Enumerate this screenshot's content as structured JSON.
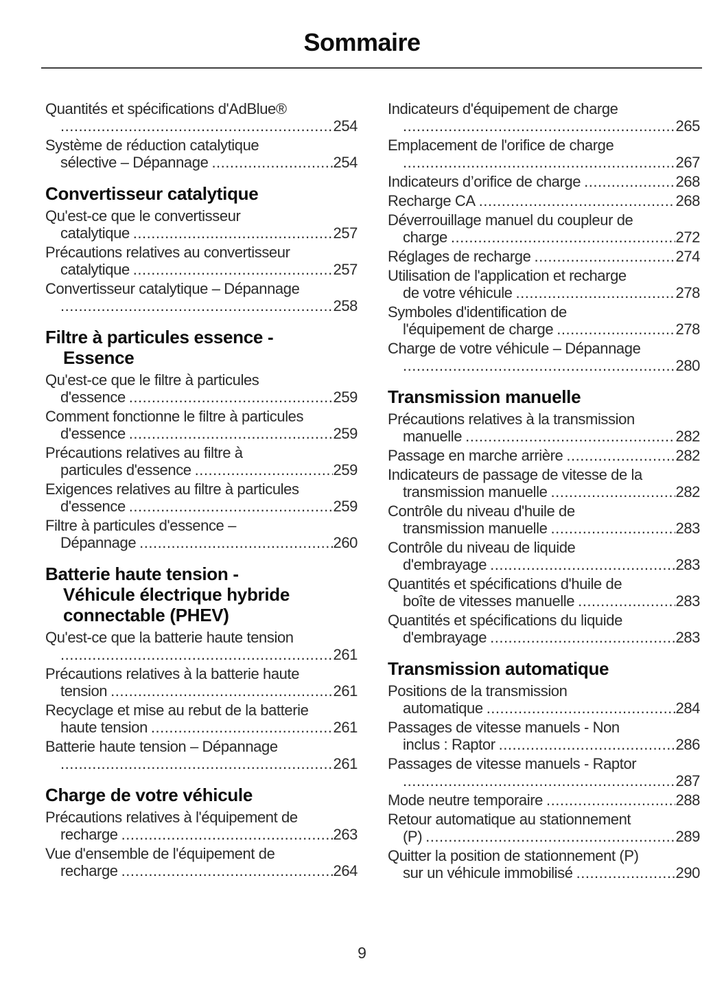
{
  "title": "Sommaire",
  "page_number": "9",
  "colors": {
    "body_text": "#2b2b2b",
    "heading_text": "#0d0d0d",
    "rule": "#404040",
    "background": "#ffffff"
  },
  "toc": {
    "left_column": [
      {
        "type": "entry",
        "lines": [
          "Quantités et spécifications d'AdBlue®",
          ""
        ],
        "page": "254"
      },
      {
        "type": "entry",
        "lines": [
          "Système de réduction catalytique",
          "sélective – Dépannage"
        ],
        "page": "254"
      },
      {
        "type": "heading",
        "lines": [
          "Convertisseur catalytique"
        ]
      },
      {
        "type": "entry",
        "lines": [
          "Qu'est-ce que le convertisseur",
          "catalytique"
        ],
        "page": "257"
      },
      {
        "type": "entry",
        "lines": [
          "Précautions relatives au convertisseur",
          "catalytique"
        ],
        "page": "257"
      },
      {
        "type": "entry",
        "lines": [
          "Convertisseur catalytique – Dépannage",
          ""
        ],
        "page": "258"
      },
      {
        "type": "heading",
        "lines": [
          "Filtre à particules essence -",
          "Essence"
        ]
      },
      {
        "type": "entry",
        "lines": [
          "Qu'est-ce que le filtre à particules",
          "d'essence"
        ],
        "page": "259"
      },
      {
        "type": "entry",
        "lines": [
          "Comment fonctionne le filtre à particules",
          "d'essence"
        ],
        "page": "259"
      },
      {
        "type": "entry",
        "lines": [
          "Précautions relatives au filtre à",
          "particules d'essence"
        ],
        "page": "259"
      },
      {
        "type": "entry",
        "lines": [
          "Exigences relatives au filtre à particules",
          "d'essence"
        ],
        "page": "259"
      },
      {
        "type": "entry",
        "lines": [
          "Filtre à particules d'essence –",
          "Dépannage"
        ],
        "page": "260"
      },
      {
        "type": "heading",
        "lines": [
          "Batterie haute tension -",
          "Véhicule électrique hybride",
          "connectable (PHEV)"
        ]
      },
      {
        "type": "entry",
        "lines": [
          "Qu'est-ce que la batterie haute tension",
          ""
        ],
        "page": "261"
      },
      {
        "type": "entry",
        "lines": [
          "Précautions relatives à la batterie haute",
          "tension"
        ],
        "page": "261"
      },
      {
        "type": "entry",
        "lines": [
          "Recyclage et mise au rebut de la batterie",
          "haute tension"
        ],
        "page": "261"
      },
      {
        "type": "entry",
        "lines": [
          "Batterie haute tension – Dépannage",
          ""
        ],
        "page": "261"
      },
      {
        "type": "heading",
        "lines": [
          "Charge de votre véhicule"
        ]
      },
      {
        "type": "entry",
        "lines": [
          "Précautions relatives à l'équipement de",
          "recharge"
        ],
        "page": "263"
      },
      {
        "type": "entry",
        "lines": [
          "Vue d'ensemble de l'équipement de",
          "recharge"
        ],
        "page": "264"
      }
    ],
    "right_column": [
      {
        "type": "entry",
        "lines": [
          "Indicateurs d'équipement de charge",
          ""
        ],
        "page": "265"
      },
      {
        "type": "entry",
        "lines": [
          "Emplacement de l'orifice de charge",
          ""
        ],
        "page": "267"
      },
      {
        "type": "entry",
        "lines": [
          "Indicateurs d’orifice de charge"
        ],
        "page": "268"
      },
      {
        "type": "entry",
        "lines": [
          "Recharge CA"
        ],
        "page": "268"
      },
      {
        "type": "entry",
        "lines": [
          "Déverrouillage manuel du coupleur de",
          "charge"
        ],
        "page": "272"
      },
      {
        "type": "entry",
        "lines": [
          "Réglages de recharge"
        ],
        "page": "274"
      },
      {
        "type": "entry",
        "lines": [
          "Utilisation de l'application et recharge",
          "de votre véhicule"
        ],
        "page": "278"
      },
      {
        "type": "entry",
        "lines": [
          "Symboles d'identification de",
          "l'équipement de charge"
        ],
        "page": "278"
      },
      {
        "type": "entry",
        "lines": [
          "Charge de votre véhicule – Dépannage",
          ""
        ],
        "page": "280"
      },
      {
        "type": "heading",
        "lines": [
          "Transmission manuelle"
        ]
      },
      {
        "type": "entry",
        "lines": [
          "Précautions relatives à la transmission",
          "manuelle"
        ],
        "page": "282"
      },
      {
        "type": "entry",
        "lines": [
          "Passage en marche arrière"
        ],
        "page": "282"
      },
      {
        "type": "entry",
        "lines": [
          "Indicateurs de passage de vitesse de la",
          "transmission manuelle"
        ],
        "page": "282"
      },
      {
        "type": "entry",
        "lines": [
          "Contrôle du niveau d'huile de",
          "transmission manuelle"
        ],
        "page": "283"
      },
      {
        "type": "entry",
        "lines": [
          "Contrôle du niveau de liquide",
          "d'embrayage"
        ],
        "page": "283"
      },
      {
        "type": "entry",
        "lines": [
          "Quantités et spécifications d'huile de",
          "boîte de vitesses manuelle"
        ],
        "page": "283"
      },
      {
        "type": "entry",
        "lines": [
          "Quantités et spécifications du liquide",
          "d'embrayage"
        ],
        "page": "283"
      },
      {
        "type": "heading",
        "lines": [
          "Transmission automatique"
        ]
      },
      {
        "type": "entry",
        "lines": [
          "Positions de la transmission",
          "automatique"
        ],
        "page": "284"
      },
      {
        "type": "entry",
        "lines": [
          "Passages de vitesse manuels - Non",
          "inclus : Raptor"
        ],
        "page": "286"
      },
      {
        "type": "entry",
        "lines": [
          "Passages de vitesse manuels - Raptor",
          ""
        ],
        "page": "287"
      },
      {
        "type": "entry",
        "lines": [
          "Mode neutre temporaire"
        ],
        "page": "288"
      },
      {
        "type": "entry",
        "lines": [
          "Retour automatique au stationnement",
          "(P)"
        ],
        "page": "289"
      },
      {
        "type": "entry",
        "lines": [
          "Quitter la position de stationnement (P)",
          "sur un véhicule immobilisé"
        ],
        "page": "290"
      }
    ]
  }
}
